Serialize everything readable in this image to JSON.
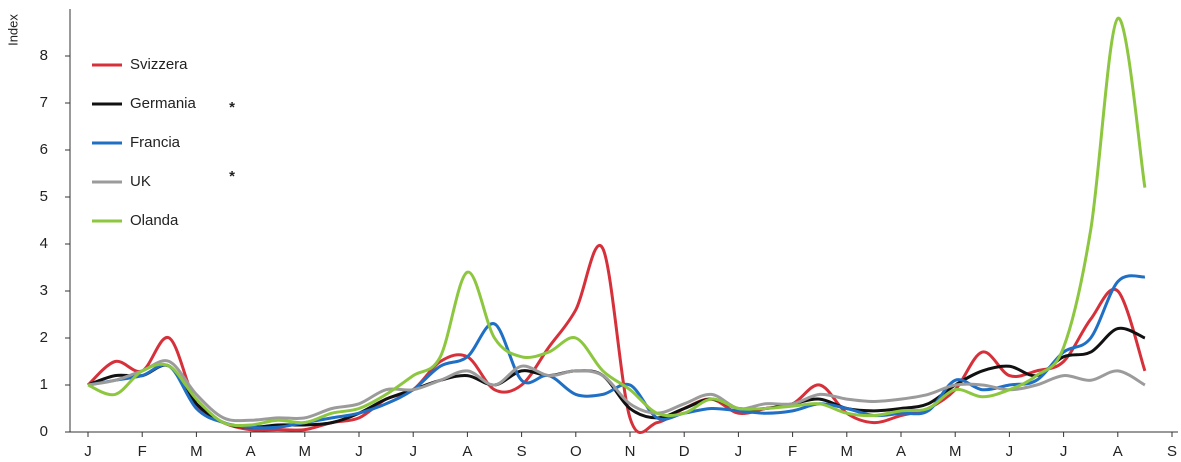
{
  "chart_data": {
    "type": "line",
    "y_label": "Index",
    "categories": [
      "J",
      null,
      "F",
      null,
      "M",
      null,
      "A",
      null,
      "M",
      null,
      "J",
      null,
      "J",
      null,
      "A",
      null,
      "S",
      null,
      "O",
      null,
      "N",
      null,
      "D",
      null,
      "J",
      null,
      "F",
      null,
      "M",
      null,
      "A",
      null,
      "M",
      null,
      "J",
      null,
      "J",
      null,
      "A",
      null,
      "S"
    ],
    "ylim": [
      0,
      9
    ],
    "yticks": [
      0,
      1,
      2,
      3,
      4,
      5,
      6,
      7,
      8
    ],
    "grid": false,
    "legend": "upper-left",
    "annotations": [
      "*",
      "*"
    ],
    "series": [
      {
        "name": "Svizzera",
        "color": "#d6303a",
        "values": [
          1.0,
          1.5,
          1.3,
          2.0,
          0.6,
          0.2,
          0.05,
          0.05,
          0.05,
          0.2,
          0.3,
          0.7,
          0.9,
          1.5,
          1.6,
          0.9,
          1.0,
          1.8,
          2.6,
          3.9,
          0.3,
          0.2,
          0.5,
          0.7,
          0.4,
          0.5,
          0.6,
          1.0,
          0.4,
          0.2,
          0.35,
          0.5,
          0.9,
          1.7,
          1.2,
          1.3,
          1.5,
          2.4,
          3.0,
          1.3,
          null
        ]
      },
      {
        "name": "Germania",
        "color": "#111111",
        "values": [
          1.0,
          1.2,
          1.2,
          1.4,
          0.6,
          0.2,
          0.1,
          0.15,
          0.15,
          0.2,
          0.4,
          0.7,
          0.9,
          1.1,
          1.2,
          1.0,
          1.3,
          1.2,
          1.3,
          1.2,
          0.5,
          0.3,
          0.5,
          0.7,
          0.5,
          0.5,
          0.6,
          0.7,
          0.5,
          0.45,
          0.5,
          0.6,
          1.0,
          1.3,
          1.4,
          1.2,
          1.6,
          1.7,
          2.2,
          2.0,
          null
        ]
      },
      {
        "name": "Francia",
        "color": "#1f6fc5",
        "values": [
          1.0,
          1.1,
          1.2,
          1.4,
          0.5,
          0.2,
          0.1,
          0.1,
          0.2,
          0.3,
          0.4,
          0.6,
          0.9,
          1.4,
          1.6,
          2.3,
          1.1,
          1.2,
          0.8,
          0.8,
          1.0,
          0.3,
          0.4,
          0.5,
          0.45,
          0.4,
          0.45,
          0.6,
          0.5,
          0.35,
          0.4,
          0.45,
          1.1,
          0.9,
          1.0,
          1.1,
          1.7,
          2.0,
          3.2,
          3.3,
          null
        ]
      },
      {
        "name": "UK",
        "color": "#9b9b9b",
        "values": [
          1.0,
          1.1,
          1.3,
          1.5,
          0.8,
          0.3,
          0.25,
          0.3,
          0.3,
          0.5,
          0.6,
          0.9,
          0.9,
          1.1,
          1.3,
          1.0,
          1.4,
          1.2,
          1.3,
          1.2,
          0.6,
          0.4,
          0.6,
          0.8,
          0.5,
          0.6,
          0.6,
          0.8,
          0.7,
          0.65,
          0.7,
          0.8,
          1.0,
          1.0,
          0.9,
          1.0,
          1.2,
          1.1,
          1.3,
          1.0,
          null
        ]
      },
      {
        "name": "Olanda",
        "color": "#8dc63f",
        "values": [
          1.0,
          0.8,
          1.3,
          1.4,
          0.7,
          0.2,
          0.15,
          0.25,
          0.2,
          0.4,
          0.5,
          0.8,
          1.2,
          1.6,
          3.4,
          2.0,
          1.6,
          1.7,
          2.0,
          1.3,
          0.9,
          0.4,
          0.4,
          0.7,
          0.5,
          0.5,
          0.55,
          0.6,
          0.4,
          0.35,
          0.45,
          0.5,
          0.9,
          0.75,
          0.9,
          1.2,
          1.8,
          4.3,
          8.8,
          5.2,
          null
        ]
      }
    ]
  }
}
